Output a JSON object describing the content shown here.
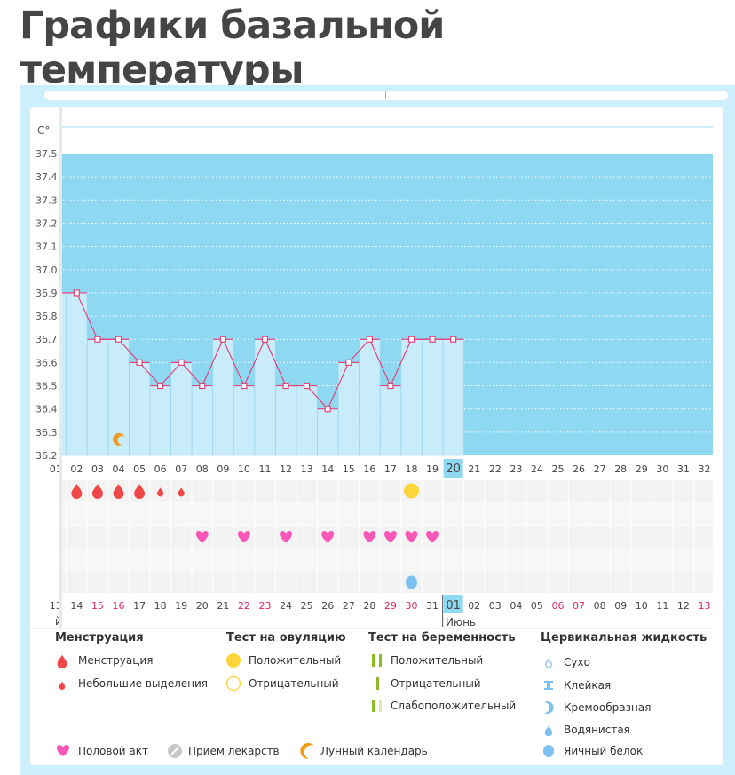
{
  "page_title": "Графики базальной температуры",
  "chart_data": {
    "type": "line",
    "ylabel": "C°",
    "ylim": [
      36.2,
      37.5
    ],
    "yticks": [
      "37.5",
      "37.4",
      "37.3",
      "37.2",
      "37.1",
      "37.0",
      "36.9",
      "36.8",
      "36.7",
      "36.6",
      "36.5",
      "36.4",
      "36.3",
      "36.2"
    ],
    "cycle_days": [
      "01",
      "02",
      "03",
      "04",
      "05",
      "06",
      "07",
      "08",
      "09",
      "10",
      "11",
      "12",
      "13",
      "14",
      "15",
      "16",
      "17",
      "18",
      "19",
      "20",
      "21",
      "22",
      "23",
      "24",
      "25",
      "26",
      "27",
      "28",
      "29",
      "30",
      "31",
      "32"
    ],
    "current_day": "20",
    "temperatures": [
      36.9,
      36.9,
      36.7,
      36.7,
      36.6,
      36.5,
      36.6,
      36.5,
      36.7,
      36.5,
      36.7,
      36.5,
      36.5,
      36.4,
      36.6,
      36.7,
      36.5,
      36.7,
      36.7,
      36.7
    ],
    "dates": [
      "13",
      "14",
      "15",
      "16",
      "17",
      "18",
      "19",
      "20",
      "21",
      "22",
      "23",
      "24",
      "25",
      "26",
      "27",
      "28",
      "29",
      "30",
      "31",
      "01",
      "02",
      "03",
      "04",
      "05",
      "06",
      "07",
      "08",
      "09",
      "10",
      "11",
      "12",
      "13"
    ],
    "weekend_dates": [
      2,
      3,
      9,
      10,
      16,
      17,
      24,
      25,
      31
    ],
    "highlight_date_index": 19,
    "months": {
      "prev": "Май",
      "prev_visible": "й",
      "next": "Июнь"
    },
    "events": {
      "menstruation": [
        1,
        2,
        3,
        4,
        5
      ],
      "spotting": [
        6,
        7
      ],
      "ovulation_positive": [
        18
      ],
      "intercourse": [
        8,
        10,
        12,
        14,
        16,
        17,
        18,
        19
      ],
      "egg_white": [
        18
      ],
      "lunar": [
        4
      ]
    },
    "colors": {
      "plot_bg": "#8fd8f2",
      "bar": "#c9ecfa",
      "line": "#e0457b",
      "today": "#8fd8f2",
      "weekend": "#e0245e",
      "drop": "#f04848",
      "heart": "#f857b8",
      "yellow": "#fcd53a",
      "green": "#8dbb24",
      "fluid": "#7cc1f0",
      "moon": "#f39a1b"
    }
  },
  "legend": {
    "menstruation": {
      "title": "Менструация",
      "items": [
        "Менструация",
        "Небольшие выделения"
      ]
    },
    "ovulation": {
      "title": "Тест на овуляцию",
      "items": [
        "Положительный",
        "Отрицательный"
      ]
    },
    "pregnancy": {
      "title": "Тест на беременность",
      "items": [
        "Положительный",
        "Отрицательный",
        "Слабоположительный"
      ]
    },
    "cervical": {
      "title": "Цервикальная жидкость",
      "items": [
        "Сухо",
        "Клейкая",
        "Кремообразная",
        "Водянистая",
        "Яичный белок"
      ]
    },
    "other": [
      "Половой акт",
      "Прием лекарств",
      "Лунный календарь"
    ]
  }
}
